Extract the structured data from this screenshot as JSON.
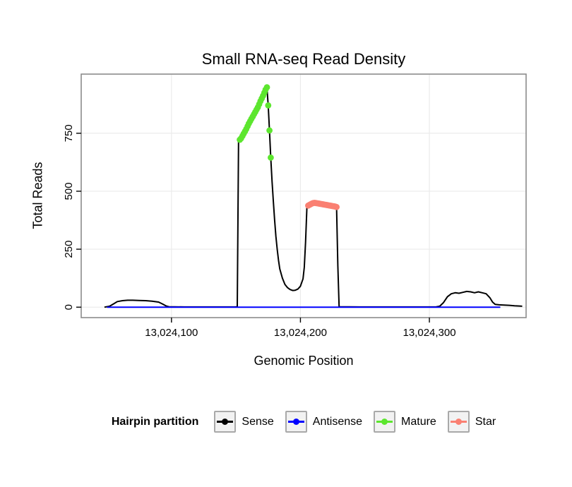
{
  "chart_data": {
    "type": "line",
    "title": "Small RNA-seq Read Density",
    "xlabel": "Genomic Position",
    "ylabel": "Total Reads",
    "legend_title": "Hairpin partition",
    "legend_position": "bottom",
    "grid": true,
    "xlim": [
      13024030,
      13024375
    ],
    "ylim": [
      -45,
      1005
    ],
    "x_ticks": [
      {
        "value": 13024100,
        "label": "13,024,100"
      },
      {
        "value": 13024200,
        "label": "13,024,200"
      },
      {
        "value": 13024300,
        "label": "13,024,300"
      }
    ],
    "y_ticks": [
      {
        "value": 0,
        "label": "0"
      },
      {
        "value": 250,
        "label": "250"
      },
      {
        "value": 500,
        "label": "500"
      },
      {
        "value": 750,
        "label": "750"
      }
    ],
    "series": [
      {
        "name": "Sense",
        "color": "#000000",
        "draw": "line",
        "points": [
          [
            13024048,
            0
          ],
          [
            13024052,
            4
          ],
          [
            13024055,
            14
          ],
          [
            13024058,
            24
          ],
          [
            13024062,
            28
          ],
          [
            13024066,
            30
          ],
          [
            13024070,
            30
          ],
          [
            13024075,
            29
          ],
          [
            13024080,
            28
          ],
          [
            13024085,
            26
          ],
          [
            13024090,
            22
          ],
          [
            13024093,
            14
          ],
          [
            13024096,
            5
          ],
          [
            13024098,
            2
          ],
          [
            13024110,
            1
          ],
          [
            13024130,
            1
          ],
          [
            13024149,
            1
          ],
          [
            13024151,
            2
          ],
          [
            13024152,
            715
          ],
          [
            13024153,
            722
          ],
          [
            13024154,
            728
          ],
          [
            13024155,
            738
          ],
          [
            13024156,
            748
          ],
          [
            13024157,
            758
          ],
          [
            13024158,
            768
          ],
          [
            13024159,
            780
          ],
          [
            13024160,
            792
          ],
          [
            13024161,
            802
          ],
          [
            13024162,
            812
          ],
          [
            13024163,
            822
          ],
          [
            13024164,
            832
          ],
          [
            13024165,
            842
          ],
          [
            13024166,
            852
          ],
          [
            13024167,
            862
          ],
          [
            13024168,
            875
          ],
          [
            13024169,
            888
          ],
          [
            13024170,
            900
          ],
          [
            13024171,
            912
          ],
          [
            13024172,
            925
          ],
          [
            13024173,
            938
          ],
          [
            13024174,
            948
          ],
          [
            13024175,
            870
          ],
          [
            13024176,
            762
          ],
          [
            13024177,
            645
          ],
          [
            13024178,
            540
          ],
          [
            13024179,
            455
          ],
          [
            13024180,
            375
          ],
          [
            13024181,
            305
          ],
          [
            13024182,
            248
          ],
          [
            13024183,
            202
          ],
          [
            13024184,
            165
          ],
          [
            13024186,
            125
          ],
          [
            13024188,
            98
          ],
          [
            13024190,
            84
          ],
          [
            13024192,
            76
          ],
          [
            13024194,
            72
          ],
          [
            13024196,
            73
          ],
          [
            13024198,
            78
          ],
          [
            13024200,
            90
          ],
          [
            13024202,
            122
          ],
          [
            13024203,
            172
          ],
          [
            13024204,
            280
          ],
          [
            13024205,
            430
          ],
          [
            13024206,
            438
          ],
          [
            13024207,
            441
          ],
          [
            13024208,
            444
          ],
          [
            13024209,
            447
          ],
          [
            13024210,
            449
          ],
          [
            13024211,
            450
          ],
          [
            13024213,
            448
          ],
          [
            13024215,
            446
          ],
          [
            13024217,
            444
          ],
          [
            13024219,
            442
          ],
          [
            13024221,
            440
          ],
          [
            13024223,
            438
          ],
          [
            13024225,
            436
          ],
          [
            13024227,
            434
          ],
          [
            13024228,
            432
          ],
          [
            13024229,
            180
          ],
          [
            13024230,
            2
          ],
          [
            13024250,
            1
          ],
          [
            13024280,
            1
          ],
          [
            13024305,
            1
          ],
          [
            13024308,
            4
          ],
          [
            13024311,
            20
          ],
          [
            13024314,
            45
          ],
          [
            13024317,
            58
          ],
          [
            13024320,
            62
          ],
          [
            13024323,
            60
          ],
          [
            13024326,
            64
          ],
          [
            13024329,
            68
          ],
          [
            13024332,
            66
          ],
          [
            13024335,
            62
          ],
          [
            13024338,
            66
          ],
          [
            13024341,
            62
          ],
          [
            13024344,
            58
          ],
          [
            13024347,
            40
          ],
          [
            13024349,
            22
          ],
          [
            13024351,
            12
          ],
          [
            13024354,
            10
          ],
          [
            13024358,
            9
          ],
          [
            13024362,
            8
          ],
          [
            13024366,
            6
          ],
          [
            13024370,
            5
          ],
          [
            13024372,
            4
          ]
        ]
      },
      {
        "name": "Antisense",
        "color": "#0000ff",
        "draw": "line",
        "points": [
          [
            13024050,
            0
          ],
          [
            13024355,
            0
          ]
        ]
      },
      {
        "name": "Mature",
        "color": "#5ce62e",
        "draw": "points",
        "points": [
          [
            13024153,
            722
          ],
          [
            13024154,
            728
          ],
          [
            13024155,
            738
          ],
          [
            13024156,
            748
          ],
          [
            13024157,
            758
          ],
          [
            13024158,
            768
          ],
          [
            13024159,
            780
          ],
          [
            13024160,
            792
          ],
          [
            13024161,
            802
          ],
          [
            13024162,
            812
          ],
          [
            13024163,
            822
          ],
          [
            13024164,
            832
          ],
          [
            13024165,
            842
          ],
          [
            13024166,
            852
          ],
          [
            13024167,
            862
          ],
          [
            13024168,
            875
          ],
          [
            13024169,
            888
          ],
          [
            13024170,
            900
          ],
          [
            13024171,
            912
          ],
          [
            13024172,
            925
          ],
          [
            13024173,
            938
          ],
          [
            13024174,
            948
          ],
          [
            13024175,
            870
          ],
          [
            13024176,
            762
          ],
          [
            13024177,
            645
          ]
        ]
      },
      {
        "name": "Star",
        "color": "#fa8072",
        "draw": "points",
        "points": [
          [
            13024206,
            438
          ],
          [
            13024207,
            441
          ],
          [
            13024208,
            444
          ],
          [
            13024209,
            447
          ],
          [
            13024210,
            449
          ],
          [
            13024211,
            450
          ],
          [
            13024212,
            449
          ],
          [
            13024213,
            448
          ],
          [
            13024214,
            447
          ],
          [
            13024215,
            446
          ],
          [
            13024216,
            445
          ],
          [
            13024217,
            444
          ],
          [
            13024218,
            443
          ],
          [
            13024219,
            442
          ],
          [
            13024220,
            441
          ],
          [
            13024221,
            440
          ],
          [
            13024222,
            439
          ],
          [
            13024223,
            438
          ],
          [
            13024224,
            437
          ],
          [
            13024225,
            436
          ],
          [
            13024226,
            435
          ],
          [
            13024227,
            434
          ],
          [
            13024228,
            432
          ]
        ]
      }
    ]
  }
}
